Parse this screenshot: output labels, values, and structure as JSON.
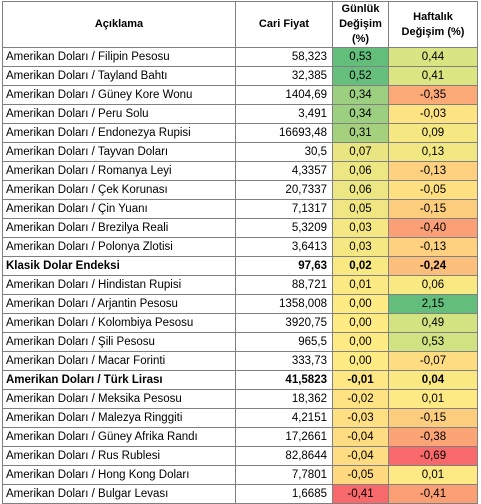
{
  "headers": {
    "name": "Açıklama",
    "price": "Cari Fiyat",
    "daily": "Günlük Değişim (%)",
    "weekly": "Haftalık Değişim (%)"
  },
  "rows": [
    {
      "name": "Amerikan Doları / Filipin Pesosu",
      "price": "58,323",
      "daily": "0,53",
      "weekly": "0,44",
      "daily_color": "#63be7b",
      "weekly_color": "#d9e482",
      "bold": false
    },
    {
      "name": "Amerikan Doları / Tayland Bahtı",
      "price": "32,385",
      "daily": "0,52",
      "weekly": "0,41",
      "daily_color": "#66bf7c",
      "weekly_color": "#dbe582",
      "bold": false
    },
    {
      "name": "Amerikan Doları / Güney Kore Wonu",
      "price": "1404,69",
      "daily": "0,34",
      "weekly": "-0,35",
      "daily_color": "#9ccf7f",
      "weekly_color": "#fbaa77",
      "bold": false
    },
    {
      "name": "Amerikan Doları / Peru Solu",
      "price": "3,491",
      "daily": "0,34",
      "weekly": "-0,03",
      "daily_color": "#9ccf7f",
      "weekly_color": "#fee382",
      "bold": false
    },
    {
      "name": "Amerikan Doları / Endonezya Rupisi",
      "price": "16693,48",
      "daily": "0,31",
      "weekly": "0,09",
      "daily_color": "#a5d17f",
      "weekly_color": "#f5e883",
      "bold": false
    },
    {
      "name": "Amerikan Doları /  Tayvan Doları",
      "price": "30,5",
      "daily": "0,07",
      "weekly": "0,13",
      "daily_color": "#e9e682",
      "weekly_color": "#f1e783",
      "bold": false
    },
    {
      "name": "Amerikan Doları / Romanya Leyi",
      "price": "4,3357",
      "daily": "0,06",
      "weekly": "-0,13",
      "daily_color": "#ece683",
      "weekly_color": "#fdd17f",
      "bold": false
    },
    {
      "name": "Amerikan Doları / Çek Korunası",
      "price": "20,7337",
      "daily": "0,06",
      "weekly": "-0,05",
      "daily_color": "#ece683",
      "weekly_color": "#fee081",
      "bold": false
    },
    {
      "name": "Amerikan Doları / Çin Yuanı",
      "price": "7,1317",
      "daily": "0,05",
      "weekly": "-0,15",
      "daily_color": "#efe683",
      "weekly_color": "#fdcd7e",
      "bold": false
    },
    {
      "name": "Amerikan Doları / Brezilya Reali",
      "price": "5,3209",
      "daily": "0,03",
      "weekly": "-0,40",
      "daily_color": "#f5e883",
      "weekly_color": "#fba076",
      "bold": false
    },
    {
      "name": "Amerikan Doları / Polonya Zlotisi",
      "price": "3,6413",
      "daily": "0,03",
      "weekly": "-0,13",
      "daily_color": "#f5e883",
      "weekly_color": "#fdd17f",
      "bold": false
    },
    {
      "name": "Klasik Dolar Endeksi",
      "price": "97,63",
      "daily": "0,02",
      "weekly": "-0,24",
      "daily_color": "#f8e983",
      "weekly_color": "#fcbe7b",
      "bold": true
    },
    {
      "name": "Amerikan Doları / Hindistan Rupisi",
      "price": "88,721",
      "daily": "0,01",
      "weekly": "0,06",
      "daily_color": "#fbea84",
      "weekly_color": "#f8e983",
      "bold": false
    },
    {
      "name": "Amerikan Doları / Arjantin Pesosu",
      "price": "1358,008",
      "daily": "0,00",
      "weekly": "2,15",
      "daily_color": "#ffeb84",
      "weekly_color": "#63be7b",
      "bold": false
    },
    {
      "name": "Amerikan Doları / Kolombiya Pesosu",
      "price": "3920,75",
      "daily": "0,00",
      "weekly": "0,49",
      "daily_color": "#ffeb84",
      "weekly_color": "#d4e382",
      "bold": false
    },
    {
      "name": "Amerikan Doları / Şili Pesosu",
      "price": "965,5",
      "daily": "0,00",
      "weekly": "0,53",
      "daily_color": "#ffeb84",
      "weekly_color": "#d1e282",
      "bold": false
    },
    {
      "name": "Amerikan Doları / Macar Forinti",
      "price": "333,73",
      "daily": "0,00",
      "weekly": "-0,07",
      "daily_color": "#ffeb84",
      "weekly_color": "#fedc81",
      "bold": false
    },
    {
      "name": "Amerikan Doları / Türk Lirası",
      "price": "41,5823",
      "daily": "-0,01",
      "weekly": "0,04",
      "daily_color": "#ffe784",
      "weekly_color": "#fae983",
      "bold": true
    },
    {
      "name": "Amerikan Doları / Meksika Pesosu",
      "price": "18,362",
      "daily": "-0,02",
      "weekly": "0,01",
      "daily_color": "#ffe383",
      "weekly_color": "#fdea84",
      "bold": false
    },
    {
      "name": "Amerikan Doları / Malezya Ringgiti",
      "price": "4,2151",
      "daily": "-0,03",
      "weekly": "-0,15",
      "daily_color": "#fee082",
      "weekly_color": "#fdcd7e",
      "bold": false
    },
    {
      "name": "Amerikan Doları / Güney Afrika Randı",
      "price": "17,2661",
      "daily": "-0,04",
      "weekly": "-0,38",
      "daily_color": "#fedc81",
      "weekly_color": "#fba476",
      "bold": false
    },
    {
      "name": "Amerikan Doları / Rus Rublesi",
      "price": "82,8644",
      "daily": "-0,04",
      "weekly": "-0,69",
      "daily_color": "#fedc81",
      "weekly_color": "#f8696b",
      "bold": false
    },
    {
      "name": "Amerikan Doları / Hong Kong Doları",
      "price": "7,7801",
      "daily": "-0,05",
      "weekly": "0,01",
      "daily_color": "#fed980",
      "weekly_color": "#fdea84",
      "bold": false
    },
    {
      "name": "Amerikan Doları / Bulgar Levası",
      "price": "1,6685",
      "daily": "-0,41",
      "weekly": "-0,41",
      "daily_color": "#f8696b",
      "weekly_color": "#fb9f75",
      "bold": false
    }
  ]
}
